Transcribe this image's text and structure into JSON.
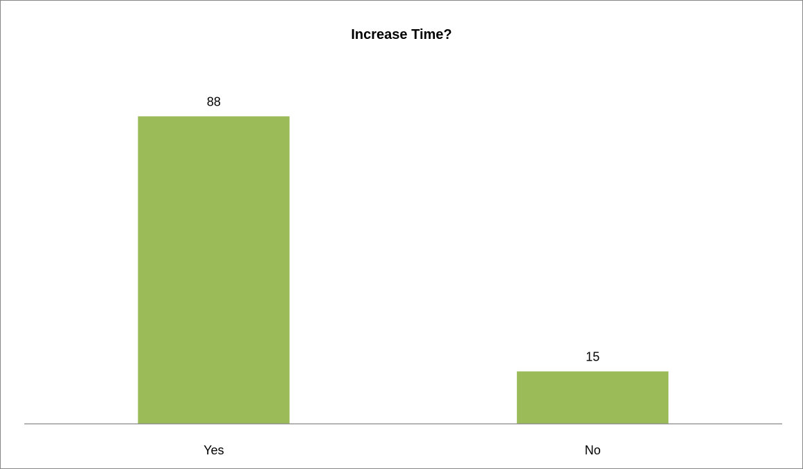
{
  "chart_data": {
    "type": "bar",
    "title": "Increase Time?",
    "xlabel": "",
    "ylabel": "",
    "categories": [
      "Yes",
      "No"
    ],
    "values": [
      88,
      15
    ],
    "data_labels": [
      "88",
      "15"
    ],
    "ylim": [
      0,
      100
    ],
    "grid": false,
    "legend": "none",
    "bar_color": "#9BBB59"
  }
}
